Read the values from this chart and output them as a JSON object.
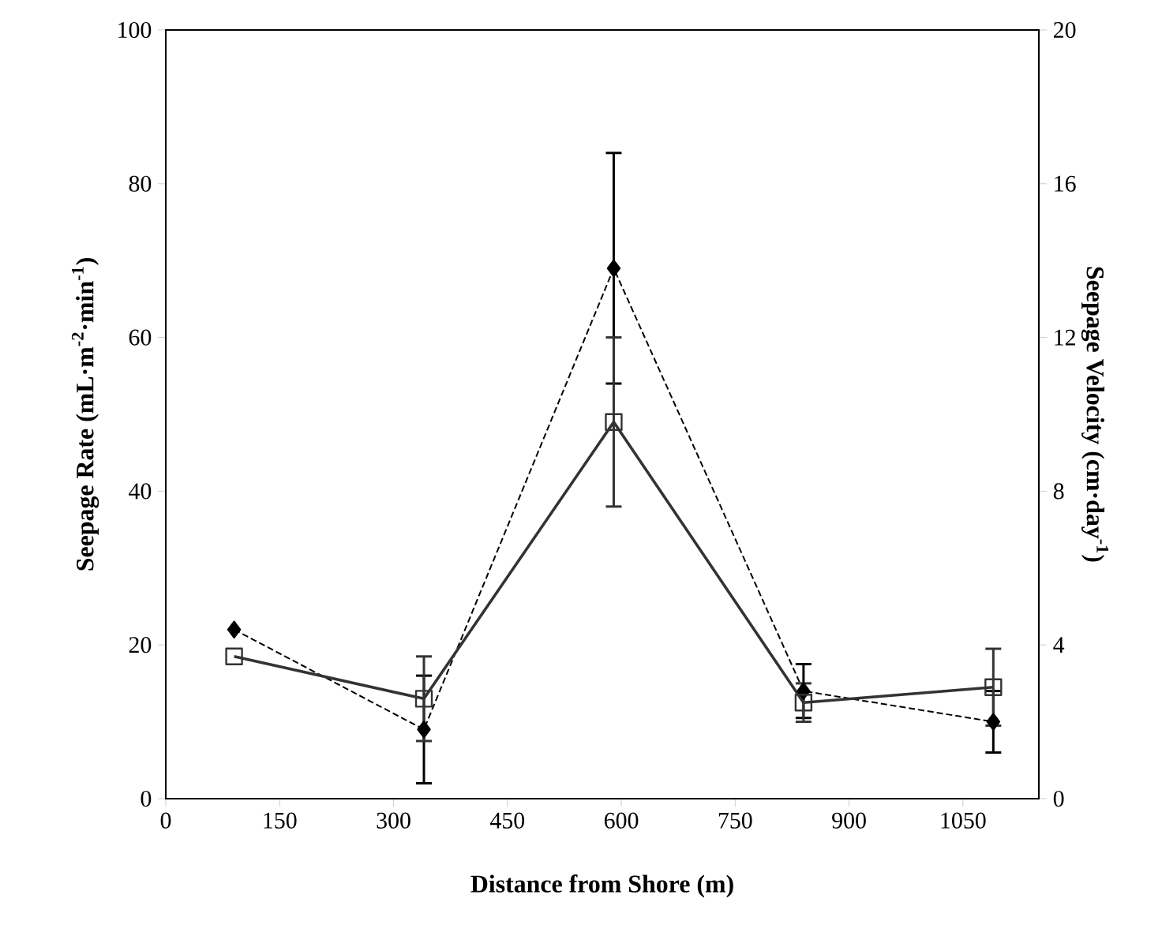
{
  "chart_data": {
    "type": "line",
    "xlabel": "Distance from Shore (m)",
    "ylabel": "Seepage Rate (mL·m$^{-2}$·min$^{-1}$)",
    "y2label": "Seepage Velocity (cm·day$^{-1}$)",
    "x": [
      90,
      340,
      590,
      840,
      1090
    ],
    "xlim": [
      0,
      1150
    ],
    "xticks": [
      0,
      150,
      300,
      450,
      600,
      750,
      900,
      1050
    ],
    "ylim": [
      0,
      100
    ],
    "yticks": [
      0,
      20,
      40,
      60,
      80,
      100
    ],
    "y2lim": [
      0,
      20
    ],
    "y2ticks": [
      0,
      4,
      8,
      12,
      16,
      20
    ],
    "series": [
      {
        "color": "#000000",
        "marker": "diamond",
        "line_style": "dashed",
        "values": [
          22,
          9,
          69,
          14,
          10
        ],
        "errors": [
          null,
          7,
          15,
          3.5,
          4
        ]
      },
      {
        "color": "#333333",
        "marker": "square",
        "line_style": "solid",
        "values": [
          18.5,
          13,
          49,
          12.5,
          14.5
        ],
        "errors": [
          null,
          5.5,
          11,
          2.5,
          5
        ]
      }
    ]
  }
}
